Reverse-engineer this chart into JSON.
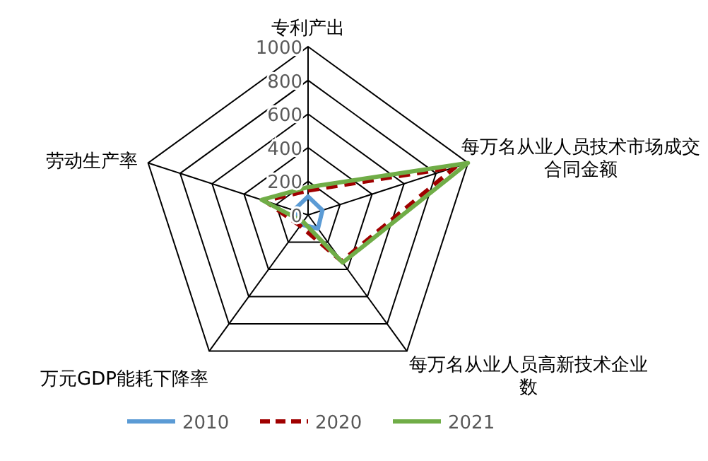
{
  "chart_data": {
    "type": "radar",
    "categories": [
      "专利产出",
      "每万名从业人员技术市场成交合同金额",
      "每万名从业人员高新技术企业数",
      "万元GDP能耗下降率",
      "劳动生产率"
    ],
    "series": [
      {
        "name": "2010",
        "color": "#5b9bd5",
        "line_style": "solid",
        "values": [
          110,
          90,
          100,
          70,
          90
        ]
      },
      {
        "name": "2020",
        "color": "#a00000",
        "line_style": "dashed",
        "values": [
          145,
          920,
          340,
          80,
          270
        ]
      },
      {
        "name": "2021",
        "color": "#70ad47",
        "line_style": "solid",
        "values": [
          165,
          1000,
          350,
          50,
          290
        ]
      }
    ],
    "ylim": [
      0,
      1000
    ],
    "yticks": [
      0,
      200,
      400,
      600,
      800,
      1000
    ],
    "grid": true,
    "legend": "bottom",
    "marker": "none"
  }
}
